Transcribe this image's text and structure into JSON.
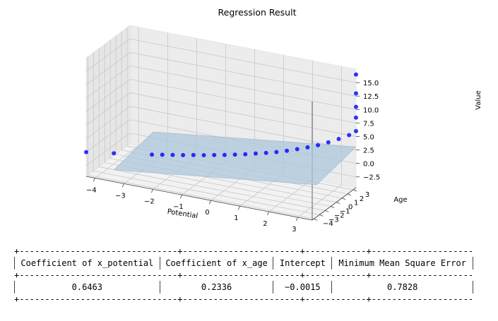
{
  "chart_data": {
    "type": "scatter",
    "title": "Regression Result",
    "xlabel": "Potential",
    "ylabel": "Age",
    "zlabel": "Value",
    "x_ticks": [
      "−4",
      "−3",
      "−2",
      "−1",
      "0",
      "1",
      "2",
      "3"
    ],
    "y_ticks": [
      "−4",
      "−3",
      "−2",
      "−1",
      "0",
      "1",
      "2",
      "3"
    ],
    "z_ticks": [
      "−2.5",
      "0.0",
      "2.5",
      "5.0",
      "7.5",
      "10.0",
      "12.5",
      "15.0"
    ],
    "xlim": [
      -4.3,
      3.5
    ],
    "ylim": [
      -4.3,
      3.5
    ],
    "zlim": [
      -4.5,
      17.5
    ],
    "point_color": "#0000ff",
    "plane_color": "#aec7dc",
    "plane": {
      "coef_potential": 0.6463,
      "coef_age": 0.2336,
      "intercept": -0.0015
    },
    "series": [
      {
        "points": [
          [
            -4.3,
            -4.3,
            0.0
          ],
          [
            -3.5,
            -3.5,
            0.0
          ],
          [
            -2.4,
            -2.4,
            0.05
          ],
          [
            -2.1,
            -2.1,
            0.1
          ],
          [
            -1.8,
            -1.8,
            0.15
          ],
          [
            -1.5,
            -1.5,
            0.2
          ],
          [
            -1.2,
            -1.2,
            0.3
          ],
          [
            -0.9,
            -0.9,
            0.35
          ],
          [
            -0.6,
            -0.6,
            0.45
          ],
          [
            -0.3,
            -0.3,
            0.55
          ],
          [
            0.0,
            0.0,
            0.7
          ],
          [
            0.3,
            0.3,
            0.85
          ],
          [
            0.6,
            0.6,
            1.05
          ],
          [
            0.9,
            0.9,
            1.25
          ],
          [
            1.2,
            1.2,
            1.5
          ],
          [
            1.5,
            1.5,
            1.8
          ],
          [
            1.8,
            1.8,
            2.2
          ],
          [
            2.1,
            2.1,
            2.6
          ],
          [
            2.4,
            2.4,
            3.1
          ],
          [
            2.7,
            2.7,
            3.7
          ],
          [
            3.0,
            3.0,
            4.4
          ],
          [
            3.3,
            3.3,
            5.2
          ],
          [
            3.5,
            3.5,
            6.0
          ],
          [
            3.5,
            3.5,
            8.5
          ],
          [
            3.5,
            3.5,
            10.5
          ],
          [
            3.5,
            3.5,
            13.0
          ],
          [
            3.5,
            3.5,
            16.5
          ]
        ]
      }
    ]
  },
  "results_table": {
    "border_top": "+-------------------------------+-----------------------+------------+---------------------------+",
    "separator": "+-------------------------------+-----------------------+------------+---------------------------+",
    "headers": [
      "Coefficient of x_potential",
      "Coefficient of x_age",
      "Intercept",
      "Minimum Mean Square Error"
    ],
    "values": [
      "0.6463",
      "0.2336",
      "−0.0015",
      "0.7828"
    ]
  }
}
